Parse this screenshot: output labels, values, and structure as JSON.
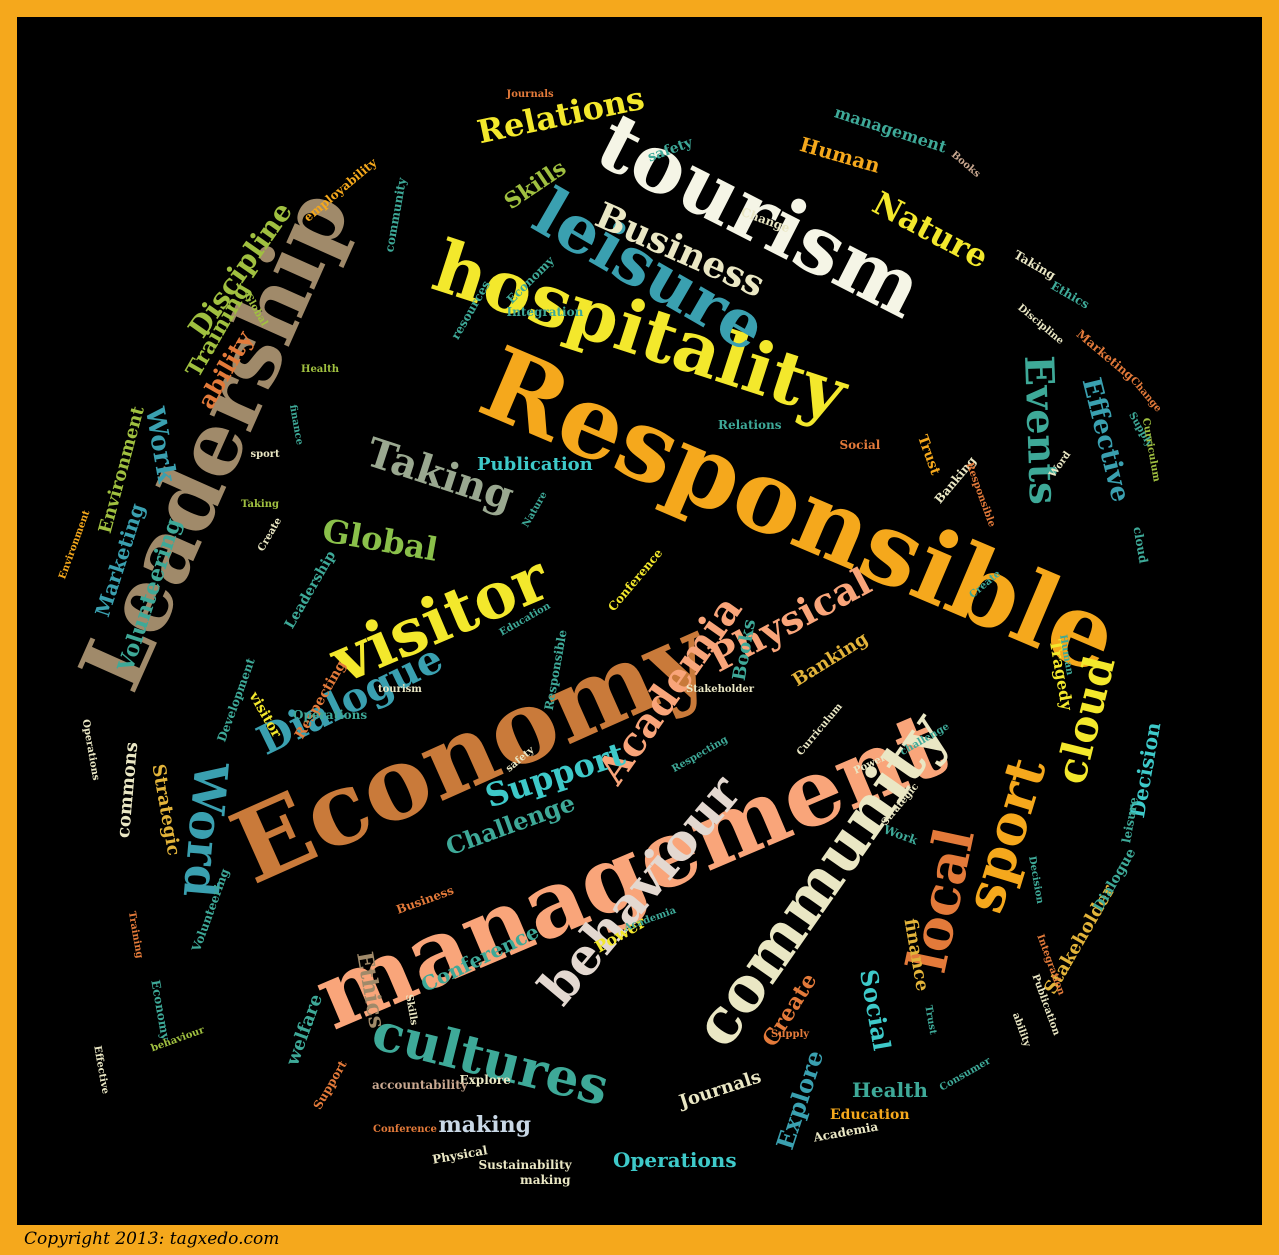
{
  "copyright": "Copyright 2013: tagxedo.com",
  "colors": {
    "border": "#f5a81c",
    "background": "#000000"
  },
  "words": [
    {
      "text": "Responsible",
      "color": "#f5a81c"
    },
    {
      "text": "management",
      "color": "#f9a57a"
    },
    {
      "text": "Economy",
      "color": "#c97a3a"
    },
    {
      "text": "Leadership",
      "color": "#a08a6a"
    },
    {
      "text": "hospitality",
      "color": "#f3e82c"
    },
    {
      "text": "tourism",
      "color": "#f5f5e6"
    },
    {
      "text": "leisure",
      "color": "#3aa0b0"
    },
    {
      "text": "visitor",
      "color": "#f3e82c"
    },
    {
      "text": "community",
      "color": "#eae7c4"
    },
    {
      "text": "behaviour",
      "color": "#e3d8d0"
    },
    {
      "text": "cultures",
      "color": "#3ea998"
    },
    {
      "text": "Dialogue",
      "color": "#3aa0b0"
    },
    {
      "text": "Word",
      "color": "#3aa0b0"
    },
    {
      "text": "sport",
      "color": "#f5a81c"
    },
    {
      "text": "local",
      "color": "#e37a3a"
    },
    {
      "text": "cloud",
      "color": "#f3e82c"
    },
    {
      "text": "Academia",
      "color": "#f9a57a"
    },
    {
      "text": "Physical",
      "color": "#f9a57a"
    },
    {
      "text": "Events",
      "color": "#3ea998"
    },
    {
      "text": "Effective",
      "color": "#3aa0b0"
    },
    {
      "text": "Nature",
      "color": "#f3e82c"
    },
    {
      "text": "Business",
      "color": "#eae7c4"
    },
    {
      "text": "Relations",
      "color": "#f3e82c"
    },
    {
      "text": "Taking",
      "color": "#9aa890"
    },
    {
      "text": "Global",
      "color": "#8ac04a"
    },
    {
      "text": "Support",
      "color": "#3ec9c9"
    },
    {
      "text": "Challenge",
      "color": "#3ea998"
    },
    {
      "text": "Skills",
      "color": "#a0c040"
    },
    {
      "text": "Human",
      "color": "#f5a81c"
    },
    {
      "text": "management",
      "color": "#3ea998"
    },
    {
      "text": "Discipline",
      "color": "#a0c040"
    },
    {
      "text": "Training",
      "color": "#a0c040"
    },
    {
      "text": "ability",
      "color": "#e37a3a"
    },
    {
      "text": "Work",
      "color": "#3aa0b0"
    },
    {
      "text": "Environment",
      "color": "#a0c040"
    },
    {
      "text": "Marketing",
      "color": "#3aa0b0"
    },
    {
      "text": "Volunteering",
      "color": "#3ea998"
    },
    {
      "text": "Strategic",
      "color": "#e3b43a"
    },
    {
      "text": "commons",
      "color": "#eae7c4"
    },
    {
      "text": "Publication",
      "color": "#3ec9c9"
    },
    {
      "text": "Banking",
      "color": "#e3b43a"
    },
    {
      "text": "Books",
      "color": "#3ea998"
    },
    {
      "text": "Decision",
      "color": "#3ec9c9"
    },
    {
      "text": "Stakeholder",
      "color": "#e3b43a"
    },
    {
      "text": "Social",
      "color": "#3ec9c9"
    },
    {
      "text": "Create",
      "color": "#e37a3a"
    },
    {
      "text": "Explore",
      "color": "#3aa0b0"
    },
    {
      "text": "Health",
      "color": "#3ea998"
    },
    {
      "text": "Journals",
      "color": "#eae7c4"
    },
    {
      "text": "making",
      "color": "#c9d8e6"
    },
    {
      "text": "Operations",
      "color": "#3ec9c9"
    },
    {
      "text": "Conference",
      "color": "#3ea998"
    },
    {
      "text": "Ethics",
      "color": "#a08a6a"
    },
    {
      "text": "welfare",
      "color": "#3ea998"
    },
    {
      "text": "Power",
      "color": "#f3e82c"
    },
    {
      "text": "finance",
      "color": "#e3b43a"
    },
    {
      "text": "Tragedy",
      "color": "#f3e82c"
    },
    {
      "text": "Trust",
      "color": "#f5a81c"
    },
    {
      "text": "safety",
      "color": "#3ea998"
    },
    {
      "text": "Change",
      "color": "#eae7c4"
    },
    {
      "text": "Integration",
      "color": "#3ea998"
    },
    {
      "text": "Economy",
      "color": "#3ea998"
    },
    {
      "text": "resources",
      "color": "#3ea998"
    },
    {
      "text": "Education",
      "color": "#f5a81c"
    },
    {
      "text": "Academia",
      "color": "#eae7c4"
    },
    {
      "text": "Sustainability",
      "color": "#eae7c4"
    },
    {
      "text": "Physical",
      "color": "#eae7c4"
    },
    {
      "text": "making",
      "color": "#eae7c4"
    },
    {
      "text": "Dialogue",
      "color": "#3ea998"
    },
    {
      "text": "Consumer",
      "color": "#3ea998"
    },
    {
      "text": "employability",
      "color": "#f5a81c"
    },
    {
      "text": "community",
      "color": "#3ea998"
    },
    {
      "text": "Journals",
      "color": "#e37a3a"
    },
    {
      "text": "Books",
      "color": "#c9a890"
    },
    {
      "text": "Taking",
      "color": "#eae7c4"
    },
    {
      "text": "Ethics",
      "color": "#3ea998"
    },
    {
      "text": "Marketing",
      "color": "#e37a3a"
    },
    {
      "text": "Supply",
      "color": "#3ea998"
    },
    {
      "text": "Curriculum",
      "color": "#a0c040"
    },
    {
      "text": "Relations",
      "color": "#3ea998"
    },
    {
      "text": "Social",
      "color": "#e37a3a"
    },
    {
      "text": "Banking",
      "color": "#eae7c4"
    },
    {
      "text": "cloud",
      "color": "#3ea998"
    },
    {
      "text": "Leadership",
      "color": "#3ea998"
    },
    {
      "text": "Conference",
      "color": "#f3e82c"
    },
    {
      "text": "Respecting",
      "color": "#e37a3a"
    },
    {
      "text": "Development",
      "color": "#3ea998"
    },
    {
      "text": "visitor",
      "color": "#f3e82c"
    },
    {
      "text": "Operations",
      "color": "#3ea998"
    },
    {
      "text": "tourism",
      "color": "#eae7c4"
    },
    {
      "text": "Stakeholder",
      "color": "#eae7c4"
    },
    {
      "text": "Respecting",
      "color": "#3ea998"
    },
    {
      "text": "leisure",
      "color": "#3ea998"
    },
    {
      "text": "safety",
      "color": "#eae7c4"
    },
    {
      "text": "Skills",
      "color": "#eae7c4"
    },
    {
      "text": "Business",
      "color": "#e37a3a"
    },
    {
      "text": "Responsible",
      "color": "#e37a3a"
    },
    {
      "text": "Work",
      "color": "#3ea998"
    },
    {
      "text": "Explore",
      "color": "#eae7c4"
    },
    {
      "text": "accountability",
      "color": "#c9a890"
    },
    {
      "text": "Decision",
      "color": "#3ea998"
    },
    {
      "text": "sport",
      "color": "#eae7c4"
    },
    {
      "text": "finance",
      "color": "#3ea998"
    },
    {
      "text": "Human",
      "color": "#3ea998"
    },
    {
      "text": "Create",
      "color": "#eae7c4"
    },
    {
      "text": "Effective",
      "color": "#eae7c4"
    },
    {
      "text": "Environment",
      "color": "#f5a81c"
    },
    {
      "text": "Operations",
      "color": "#eae7c4"
    },
    {
      "text": "Volunteering",
      "color": "#3ea998"
    },
    {
      "text": "Responsible",
      "color": "#3ea998"
    },
    {
      "text": "Economy",
      "color": "#3ea998"
    },
    {
      "text": "behaviour",
      "color": "#a0c040"
    },
    {
      "text": "Support",
      "color": "#e37a3a"
    },
    {
      "text": "Taking",
      "color": "#a0c040"
    },
    {
      "text": "challenge",
      "color": "#3ea998"
    },
    {
      "text": "Discipline",
      "color": "#eae7c4"
    },
    {
      "text": "Global",
      "color": "#a0c040"
    },
    {
      "text": "Word",
      "color": "#eae7c4"
    },
    {
      "text": "Nature",
      "color": "#3ea998"
    },
    {
      "text": "Integration",
      "color": "#e37a3a"
    },
    {
      "text": "Curriculum",
      "color": "#eae7c4"
    },
    {
      "text": "Strategic",
      "color": "#eae7c4"
    },
    {
      "text": "Create",
      "color": "#3ea998"
    },
    {
      "text": "Education",
      "color": "#3ea998"
    },
    {
      "text": "Health",
      "color": "#a0c040"
    },
    {
      "text": "Power",
      "color": "#eae7c4"
    },
    {
      "text": "Change",
      "color": "#e37a3a"
    },
    {
      "text": "Publication",
      "color": "#eae7c4"
    },
    {
      "text": "ability",
      "color": "#eae7c4"
    },
    {
      "text": "Trust",
      "color": "#3ea998"
    },
    {
      "text": "Academia",
      "color": "#3ea998"
    },
    {
      "text": "Training",
      "color": "#e37a3a"
    },
    {
      "text": "Conference",
      "color": "#e37a3a"
    },
    {
      "text": "Supply",
      "color": "#e37a3a"
    },
    {
      "text": "Decision",
      "color": "#e37a3a"
    },
    {
      "text": "Challenge",
      "color": "#eae7c4"
    },
    {
      "text": "Discipline",
      "color": "#3ea998"
    },
    {
      "text": "Consumer",
      "color": "#3ea998"
    },
    {
      "text": "resources",
      "color": "#3ea998"
    }
  ]
}
